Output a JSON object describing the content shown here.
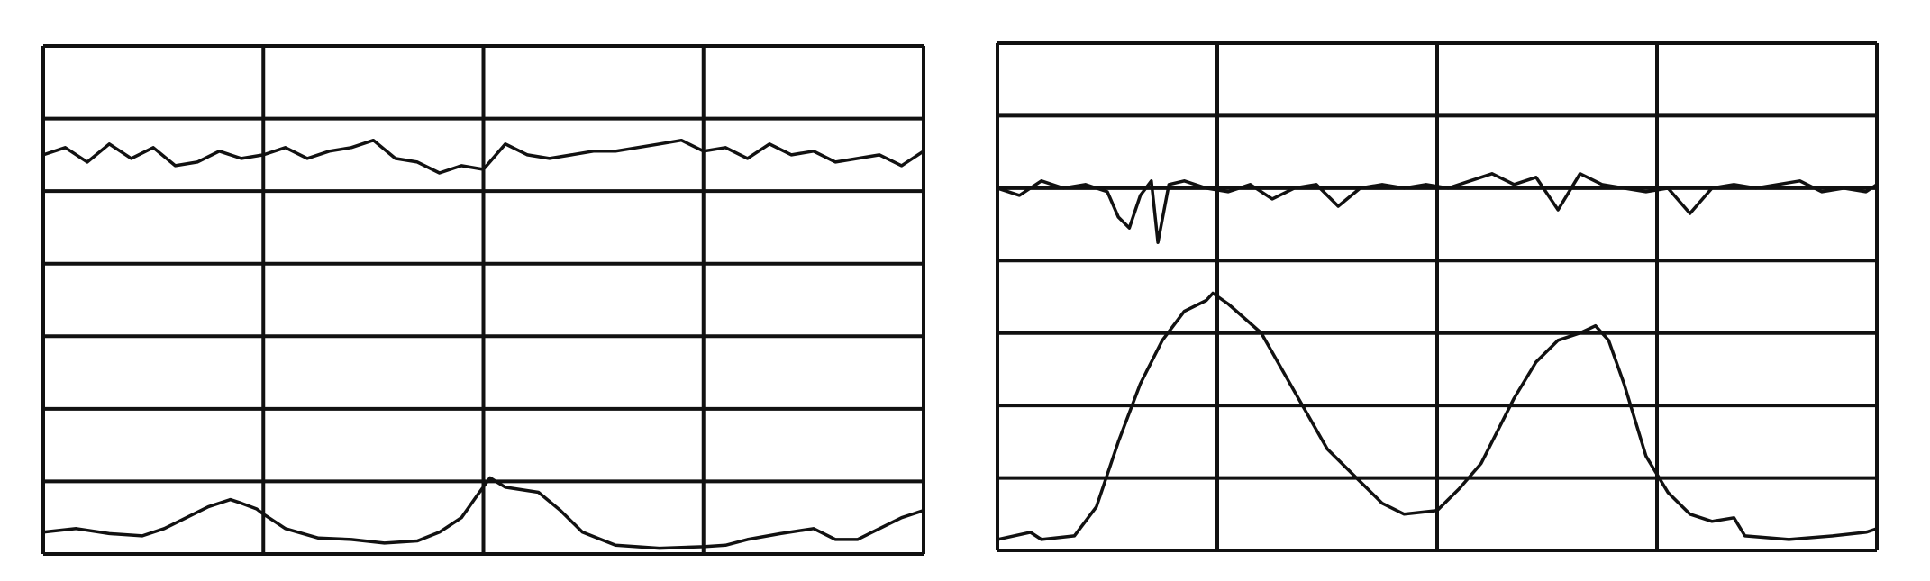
{
  "chart_data": [
    {
      "type": "line",
      "grid": true,
      "xlim": [
        0,
        4
      ],
      "ylim": [
        0,
        7
      ],
      "series": [
        {
          "x": [
            0,
            0.1,
            0.2,
            0.3,
            0.4,
            0.5,
            0.6,
            0.7,
            0.8,
            0.9,
            1.0,
            1.1,
            1.2,
            1.3,
            1.4,
            1.5,
            1.6,
            1.7,
            1.8,
            1.9,
            2.0,
            2.1,
            2.2,
            2.3,
            2.4,
            2.5,
            2.6,
            2.7,
            2.8,
            2.9,
            3.0,
            3.1,
            3.2,
            3.3,
            3.4,
            3.5,
            3.6,
            3.7,
            3.8,
            3.9,
            4.0
          ],
          "y": [
            5.5,
            5.6,
            5.4,
            5.65,
            5.45,
            5.6,
            5.35,
            5.4,
            5.55,
            5.45,
            5.5,
            5.6,
            5.45,
            5.55,
            5.6,
            5.7,
            5.45,
            5.4,
            5.25,
            5.35,
            5.3,
            5.65,
            5.5,
            5.45,
            5.5,
            5.55,
            5.55,
            5.6,
            5.65,
            5.7,
            5.55,
            5.6,
            5.45,
            5.65,
            5.5,
            5.55,
            5.4,
            5.45,
            5.5,
            5.35,
            5.55
          ]
        },
        {
          "x": [
            0,
            0.15,
            0.3,
            0.45,
            0.55,
            0.65,
            0.75,
            0.85,
            0.9,
            0.97,
            1.0,
            1.1,
            1.25,
            1.4,
            1.55,
            1.7,
            1.8,
            1.9,
            1.97,
            2.03,
            2.1,
            2.25,
            2.35,
            2.45,
            2.6,
            2.8,
            3.0,
            3.1,
            3.2,
            3.35,
            3.5,
            3.6,
            3.7,
            3.8,
            3.9,
            4.0
          ],
          "y": [
            0.3,
            0.35,
            0.28,
            0.25,
            0.35,
            0.5,
            0.65,
            0.75,
            0.7,
            0.62,
            0.55,
            0.35,
            0.22,
            0.2,
            0.15,
            0.18,
            0.3,
            0.5,
            0.8,
            1.05,
            0.92,
            0.85,
            0.6,
            0.3,
            0.12,
            0.08,
            0.1,
            0.12,
            0.2,
            0.28,
            0.35,
            0.2,
            0.2,
            0.35,
            0.5,
            0.6
          ]
        }
      ]
    },
    {
      "type": "line",
      "grid": true,
      "xlim": [
        0,
        4
      ],
      "ylim": [
        0,
        7
      ],
      "series": [
        {
          "x": [
            0,
            0.1,
            0.2,
            0.3,
            0.4,
            0.5,
            0.55,
            0.6,
            0.65,
            0.7,
            0.73,
            0.78,
            0.85,
            0.95,
            1.05,
            1.15,
            1.25,
            1.35,
            1.45,
            1.55,
            1.65,
            1.75,
            1.85,
            1.95,
            2.05,
            2.15,
            2.25,
            2.35,
            2.45,
            2.55,
            2.65,
            2.75,
            2.85,
            2.95,
            3.05,
            3.15,
            3.25,
            3.35,
            3.45,
            3.55,
            3.65,
            3.75,
            3.85,
            3.95,
            4.0
          ],
          "y": [
            5.0,
            4.9,
            5.1,
            5.0,
            5.05,
            4.95,
            4.6,
            4.45,
            4.9,
            5.1,
            4.25,
            5.05,
            5.1,
            5.0,
            4.95,
            5.05,
            4.85,
            5.0,
            5.05,
            4.75,
            5.0,
            5.05,
            5.0,
            5.05,
            5.0,
            5.1,
            5.2,
            5.05,
            5.15,
            4.7,
            5.2,
            5.05,
            5.0,
            4.95,
            5.0,
            4.65,
            5.0,
            5.05,
            5.0,
            5.05,
            5.1,
            4.95,
            5.0,
            4.95,
            5.05
          ]
        },
        {
          "x": [
            0,
            0.15,
            0.2,
            0.35,
            0.45,
            0.55,
            0.65,
            0.75,
            0.85,
            0.95,
            0.98,
            1.05,
            1.2,
            1.35,
            1.5,
            1.65,
            1.75,
            1.85,
            2.0,
            2.1,
            2.2,
            2.35,
            2.45,
            2.55,
            2.65,
            2.72,
            2.78,
            2.85,
            2.95,
            3.05,
            3.15,
            3.25,
            3.35,
            3.4,
            3.6,
            3.8,
            3.95,
            4.0
          ],
          "y": [
            0.15,
            0.25,
            0.15,
            0.2,
            0.6,
            1.5,
            2.3,
            2.9,
            3.3,
            3.45,
            3.55,
            3.4,
            3.0,
            2.2,
            1.4,
            0.95,
            0.65,
            0.5,
            0.55,
            0.85,
            1.2,
            2.1,
            2.6,
            2.9,
            3.0,
            3.1,
            2.9,
            2.3,
            1.3,
            0.8,
            0.5,
            0.4,
            0.45,
            0.2,
            0.15,
            0.2,
            0.25,
            0.3
          ]
        }
      ]
    }
  ]
}
